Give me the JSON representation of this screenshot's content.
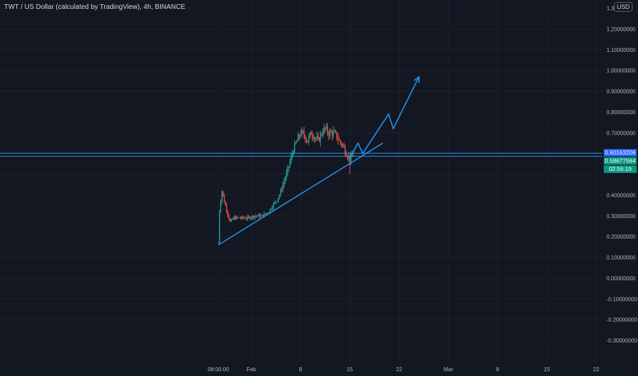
{
  "header": {
    "title": "TWT / US Dollar (calculated by TradingView), 4h, BINANCE",
    "currency": "USD"
  },
  "colors": {
    "background": "#131722",
    "grid": "#1e222d",
    "up": "#26a69a",
    "down": "#ef5350",
    "drawing": "#2196f3",
    "axis_text": "#b2b5be",
    "label_blue": "#2962ff",
    "label_teal": "#089981"
  },
  "price_labels": {
    "horizontal_line": "0.60163206",
    "last_price": "0.58677564",
    "countdown": "02:56:19"
  },
  "chart_data": {
    "type": "candlestick",
    "timeframe": "4h",
    "y_axis": {
      "position": "right",
      "min": -0.35,
      "max": 1.32,
      "ticks": [
        {
          "value": 1.3,
          "label": "1.3"
        },
        {
          "value": 1.2,
          "label": "1.20000000"
        },
        {
          "value": 1.1,
          "label": "1.10000000"
        },
        {
          "value": 1.0,
          "label": "1.00000000"
        },
        {
          "value": 0.9,
          "label": "0.90000000"
        },
        {
          "value": 0.8,
          "label": "0.80000000"
        },
        {
          "value": 0.7,
          "label": "0.70000000"
        },
        {
          "value": 0.4,
          "label": "0.40000000"
        },
        {
          "value": 0.3,
          "label": "0.30000000"
        },
        {
          "value": 0.2,
          "label": "0.20000000"
        },
        {
          "value": 0.1,
          "label": "0.10000000"
        },
        {
          "value": 0.0,
          "label": "0.00000000"
        },
        {
          "value": -0.1,
          "label": "-0.10000000"
        },
        {
          "value": -0.2,
          "label": "-0.20000000"
        },
        {
          "value": -0.3,
          "label": "-0.30000000"
        }
      ]
    },
    "x_axis": {
      "min_day": 26.5,
      "max_day": 80.5,
      "ticks": [
        {
          "day": 27.33,
          "label": "08:00:00"
        },
        {
          "day": 32,
          "label": "Feb"
        },
        {
          "day": 39,
          "label": "8"
        },
        {
          "day": 46,
          "label": "15"
        },
        {
          "day": 53,
          "label": "22"
        },
        {
          "day": 60,
          "label": "Mar"
        },
        {
          "day": 67,
          "label": "8"
        },
        {
          "day": 74,
          "label": "15"
        },
        {
          "day": 81,
          "label": "22"
        }
      ]
    },
    "price_path": [
      {
        "day": 27.33,
        "price": 0.17
      },
      {
        "day": 27.5,
        "price": 0.33
      },
      {
        "day": 27.83,
        "price": 0.42
      },
      {
        "day": 28.17,
        "price": 0.37
      },
      {
        "day": 28.5,
        "price": 0.33
      },
      {
        "day": 29.0,
        "price": 0.27
      },
      {
        "day": 29.5,
        "price": 0.29
      },
      {
        "day": 30.5,
        "price": 0.29
      },
      {
        "day": 31.5,
        "price": 0.29
      },
      {
        "day": 32.5,
        "price": 0.3
      },
      {
        "day": 33.5,
        "price": 0.3
      },
      {
        "day": 34.5,
        "price": 0.32
      },
      {
        "day": 35.0,
        "price": 0.35
      },
      {
        "day": 35.5,
        "price": 0.37
      },
      {
        "day": 36.0,
        "price": 0.4
      },
      {
        "day": 36.5,
        "price": 0.45
      },
      {
        "day": 37.0,
        "price": 0.5
      },
      {
        "day": 37.5,
        "price": 0.56
      },
      {
        "day": 38.0,
        "price": 0.62
      },
      {
        "day": 38.5,
        "price": 0.66
      },
      {
        "day": 39.0,
        "price": 0.7
      },
      {
        "day": 39.5,
        "price": 0.69
      },
      {
        "day": 40.0,
        "price": 0.66
      },
      {
        "day": 40.5,
        "price": 0.7
      },
      {
        "day": 41.0,
        "price": 0.68
      },
      {
        "day": 41.5,
        "price": 0.66
      },
      {
        "day": 42.0,
        "price": 0.7
      },
      {
        "day": 42.5,
        "price": 0.72
      },
      {
        "day": 43.0,
        "price": 0.7
      },
      {
        "day": 43.5,
        "price": 0.7
      },
      {
        "day": 44.0,
        "price": 0.69
      },
      {
        "day": 44.5,
        "price": 0.66
      },
      {
        "day": 45.0,
        "price": 0.64
      },
      {
        "day": 45.5,
        "price": 0.6
      },
      {
        "day": 46.0,
        "price": 0.57
      },
      {
        "day": 46.5,
        "price": 0.59
      }
    ],
    "horizontal_lines": [
      0.60163206,
      0.58677564
    ],
    "trendline": [
      {
        "day": 27.33,
        "price": 0.16
      },
      {
        "day": 50.67,
        "price": 0.65
      }
    ],
    "projection_path": [
      {
        "day": 46.0,
        "price": 0.58
      },
      {
        "day": 47.17,
        "price": 0.65
      },
      {
        "day": 47.83,
        "price": 0.6
      },
      {
        "day": 51.5,
        "price": 0.79
      },
      {
        "day": 52.17,
        "price": 0.72
      },
      {
        "day": 55.83,
        "price": 0.97
      }
    ]
  }
}
